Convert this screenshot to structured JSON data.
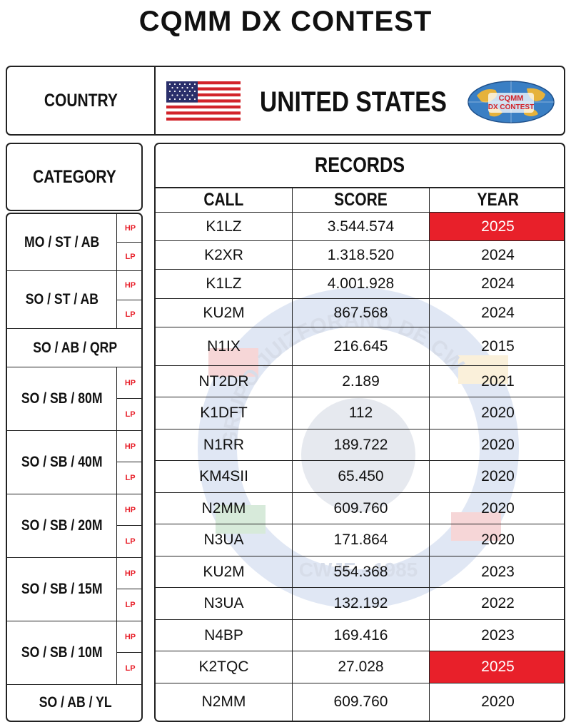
{
  "title": "CQMM DX CONTEST",
  "country": {
    "label": "COUNTRY",
    "name": "UNITED STATES",
    "logo_text_1": "CQMM",
    "logo_text_2": "DX CONTEST"
  },
  "category_header": "CATEGORY",
  "records_header": "RECORDS",
  "columns": {
    "call": "CALL",
    "score": "SCORE",
    "year": "YEAR"
  },
  "watermark": {
    "text": "GRUPO JUIZFORANO DE CW",
    "bottom_text": "CWJF - 1985"
  },
  "colors": {
    "highlight": "#e8202a",
    "border": "#222222"
  },
  "categories": [
    {
      "name": "MO / ST / AB"
    },
    {
      "name": "SO / ST / AB"
    },
    {
      "name": "SO / AB / QRP"
    },
    {
      "name": "SO / SB / 80M"
    },
    {
      "name": "SO / SB / 40M"
    },
    {
      "name": "SO / SB / 20M"
    },
    {
      "name": "SO / SB / 15M"
    },
    {
      "name": "SO / SB / 10M"
    },
    {
      "name": "SO / AB / YL"
    }
  ],
  "rows": [
    {
      "power": "HP",
      "call": "K1LZ",
      "score": "3.544.574",
      "year": "2025",
      "highlight": true
    },
    {
      "power": "LP",
      "call": "K2XR",
      "score": "1.318.520",
      "year": "2024",
      "highlight": false
    },
    {
      "power": "HP",
      "call": "K1LZ",
      "score": "4.001.928",
      "year": "2024",
      "highlight": false
    },
    {
      "power": "LP",
      "call": "KU2M",
      "score": "867.568",
      "year": "2024",
      "highlight": false
    },
    {
      "power": "",
      "call": "N1IX",
      "score": "216.645",
      "year": "2015",
      "highlight": false
    },
    {
      "power": "HP",
      "call": "NT2DR",
      "score": "2.189",
      "year": "2021",
      "highlight": false
    },
    {
      "power": "LP",
      "call": "K1DFT",
      "score": "112",
      "year": "2020",
      "highlight": false
    },
    {
      "power": "HP",
      "call": "N1RR",
      "score": "189.722",
      "year": "2020",
      "highlight": false
    },
    {
      "power": "LP",
      "call": "KM4SII",
      "score": "65.450",
      "year": "2020",
      "highlight": false
    },
    {
      "power": "HP",
      "call": "N2MM",
      "score": "609.760",
      "year": "2020",
      "highlight": false
    },
    {
      "power": "LP",
      "call": "N3UA",
      "score": "171.864",
      "year": "2020",
      "highlight": false
    },
    {
      "power": "HP",
      "call": "KU2M",
      "score": "554.368",
      "year": "2023",
      "highlight": false
    },
    {
      "power": "LP",
      "call": "N3UA",
      "score": "132.192",
      "year": "2022",
      "highlight": false
    },
    {
      "power": "HP",
      "call": "N4BP",
      "score": "169.416",
      "year": "2023",
      "highlight": false
    },
    {
      "power": "LP",
      "call": "K2TQC",
      "score": "27.028",
      "year": "2025",
      "highlight": true
    },
    {
      "power": "",
      "call": "N2MM",
      "score": "609.760",
      "year": "2020",
      "highlight": false
    }
  ]
}
